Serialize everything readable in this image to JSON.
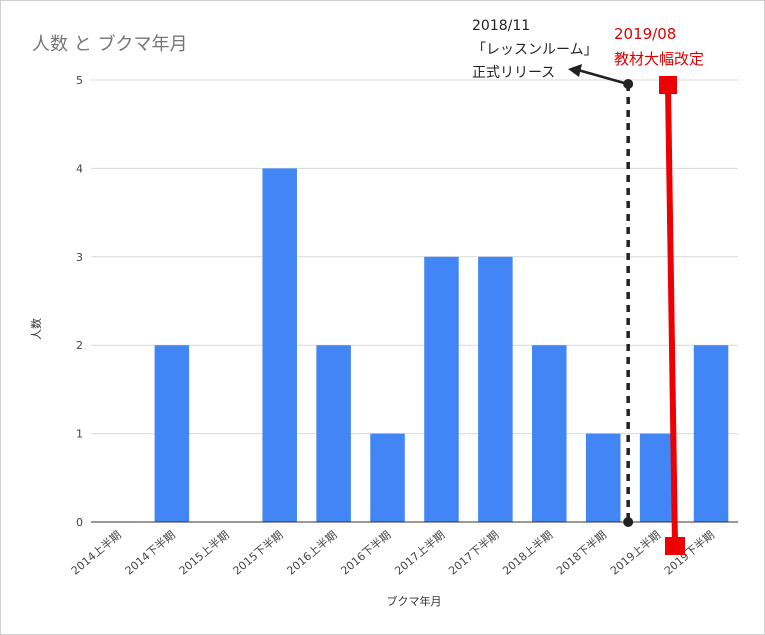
{
  "chart_data": {
    "type": "bar",
    "title": "人数 と ブクマ年月",
    "xlabel": "ブクマ年月",
    "ylabel": "人数",
    "categories": [
      "2014上半期",
      "2014下半期",
      "2015上半期",
      "2015下半期",
      "2016上半期",
      "2016下半期",
      "2017上半期",
      "2017下半期",
      "2018上半期",
      "2018下半期",
      "2019上半期",
      "2019下半期"
    ],
    "values": [
      0,
      2,
      0,
      4,
      2,
      1,
      3,
      3,
      2,
      1,
      1,
      2
    ],
    "ylim": [
      0,
      5
    ],
    "yticks": [
      0,
      1,
      2,
      3,
      4,
      5
    ],
    "grid": true,
    "bar_color": "#4285f4",
    "annotations": [
      {
        "lines": [
          "2018/11",
          "「レッスンルーム」",
          "正式リリース"
        ],
        "color": "#222222",
        "style": "dotted-vertical-line"
      },
      {
        "lines": [
          "2019/08",
          "教材大幅改定"
        ],
        "color": "#ee0000",
        "style": "thick-vertical-line"
      }
    ]
  }
}
